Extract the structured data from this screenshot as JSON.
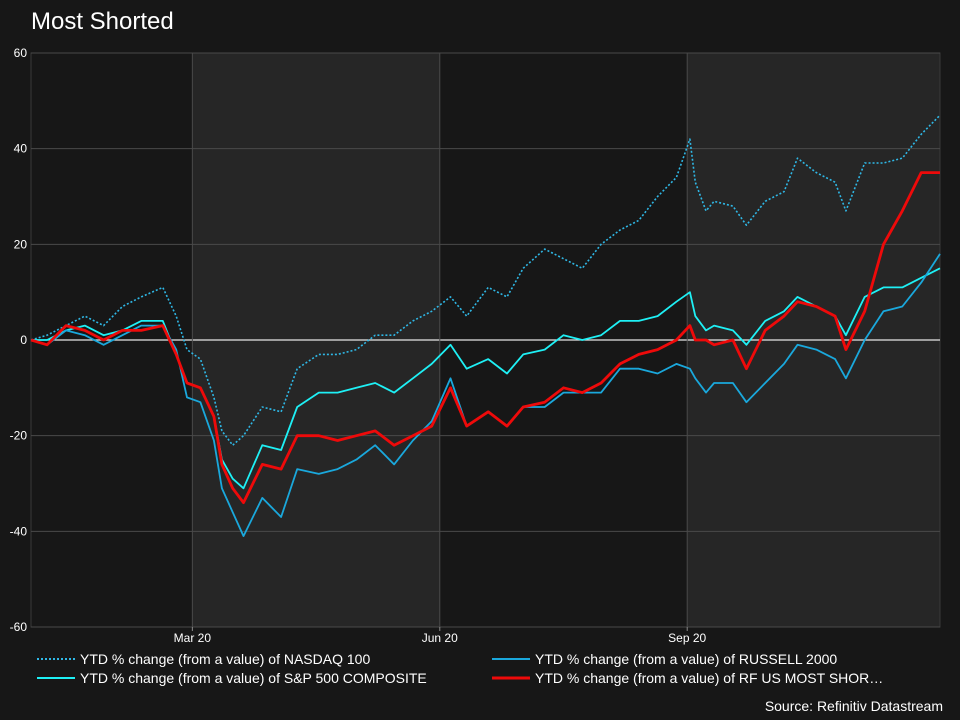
{
  "chart_data": {
    "type": "line",
    "title": "Most Shorted",
    "source": "Source: Refinitiv Datastream",
    "ylim": [
      -60,
      60
    ],
    "yticks": [
      60,
      40,
      20,
      0,
      -20,
      -40,
      -60
    ],
    "ytick_labels": [
      "60",
      "40",
      "20",
      "0",
      "-20",
      "-40",
      "-60"
    ],
    "x_range": [
      "2020-01-01",
      "2020-12-04"
    ],
    "xticks": [
      {
        "date": "2020-03-01",
        "label": "Mar 20"
      },
      {
        "date": "2020-06-01",
        "label": "Jun 20"
      },
      {
        "date": "2020-09-01",
        "label": "Sep 20"
      }
    ],
    "shaded_periods": [
      [
        "2020-03-01",
        "2020-06-01"
      ],
      [
        "2020-09-01",
        "2020-12-04"
      ]
    ],
    "legend_placement": "bottom",
    "series": [
      {
        "name": "YTD % change (from a value) of NASDAQ 100",
        "color": "#2fb8e6",
        "style": "dotted",
        "points": [
          [
            "2020-01-01",
            0
          ],
          [
            "2020-01-07",
            1
          ],
          [
            "2020-01-14",
            3
          ],
          [
            "2020-01-21",
            5
          ],
          [
            "2020-01-28",
            3
          ],
          [
            "2020-02-04",
            7
          ],
          [
            "2020-02-11",
            9
          ],
          [
            "2020-02-19",
            11
          ],
          [
            "2020-02-24",
            5
          ],
          [
            "2020-02-28",
            -2
          ],
          [
            "2020-03-04",
            -4
          ],
          [
            "2020-03-09",
            -12
          ],
          [
            "2020-03-12",
            -19
          ],
          [
            "2020-03-16",
            -22
          ],
          [
            "2020-03-20",
            -20
          ],
          [
            "2020-03-27",
            -14
          ],
          [
            "2020-04-03",
            -15
          ],
          [
            "2020-04-09",
            -6
          ],
          [
            "2020-04-17",
            -3
          ],
          [
            "2020-04-24",
            -3
          ],
          [
            "2020-05-01",
            -2
          ],
          [
            "2020-05-08",
            1
          ],
          [
            "2020-05-15",
            1
          ],
          [
            "2020-05-22",
            4
          ],
          [
            "2020-05-29",
            6
          ],
          [
            "2020-06-05",
            9
          ],
          [
            "2020-06-11",
            5
          ],
          [
            "2020-06-19",
            11
          ],
          [
            "2020-06-26",
            9
          ],
          [
            "2020-07-02",
            15
          ],
          [
            "2020-07-10",
            19
          ],
          [
            "2020-07-17",
            17
          ],
          [
            "2020-07-24",
            15
          ],
          [
            "2020-07-31",
            20
          ],
          [
            "2020-08-07",
            23
          ],
          [
            "2020-08-14",
            25
          ],
          [
            "2020-08-21",
            30
          ],
          [
            "2020-08-28",
            34
          ],
          [
            "2020-09-02",
            42
          ],
          [
            "2020-09-04",
            33
          ],
          [
            "2020-09-08",
            27
          ],
          [
            "2020-09-11",
            29
          ],
          [
            "2020-09-18",
            28
          ],
          [
            "2020-09-23",
            24
          ],
          [
            "2020-09-30",
            29
          ],
          [
            "2020-10-07",
            31
          ],
          [
            "2020-10-12",
            38
          ],
          [
            "2020-10-19",
            35
          ],
          [
            "2020-10-26",
            33
          ],
          [
            "2020-10-30",
            27
          ],
          [
            "2020-11-06",
            37
          ],
          [
            "2020-11-13",
            37
          ],
          [
            "2020-11-20",
            38
          ],
          [
            "2020-11-27",
            43
          ],
          [
            "2020-12-04",
            47
          ]
        ]
      },
      {
        "name": "YTD % change (from a value) of S&P 500 COMPOSITE",
        "color": "#1ef0f5",
        "style": "solid",
        "points": [
          [
            "2020-01-01",
            0
          ],
          [
            "2020-01-07",
            0
          ],
          [
            "2020-01-14",
            2
          ],
          [
            "2020-01-21",
            3
          ],
          [
            "2020-01-28",
            1
          ],
          [
            "2020-02-04",
            2
          ],
          [
            "2020-02-11",
            4
          ],
          [
            "2020-02-19",
            4
          ],
          [
            "2020-02-24",
            -3
          ],
          [
            "2020-02-28",
            -9
          ],
          [
            "2020-03-04",
            -10
          ],
          [
            "2020-03-09",
            -16
          ],
          [
            "2020-03-12",
            -25
          ],
          [
            "2020-03-16",
            -29
          ],
          [
            "2020-03-20",
            -31
          ],
          [
            "2020-03-27",
            -22
          ],
          [
            "2020-04-03",
            -23
          ],
          [
            "2020-04-09",
            -14
          ],
          [
            "2020-04-17",
            -11
          ],
          [
            "2020-04-24",
            -11
          ],
          [
            "2020-05-01",
            -10
          ],
          [
            "2020-05-08",
            -9
          ],
          [
            "2020-05-15",
            -11
          ],
          [
            "2020-05-22",
            -8
          ],
          [
            "2020-05-29",
            -5
          ],
          [
            "2020-06-05",
            -1
          ],
          [
            "2020-06-11",
            -6
          ],
          [
            "2020-06-19",
            -4
          ],
          [
            "2020-06-26",
            -7
          ],
          [
            "2020-07-02",
            -3
          ],
          [
            "2020-07-10",
            -2
          ],
          [
            "2020-07-17",
            1
          ],
          [
            "2020-07-24",
            0
          ],
          [
            "2020-07-31",
            1
          ],
          [
            "2020-08-07",
            4
          ],
          [
            "2020-08-14",
            4
          ],
          [
            "2020-08-21",
            5
          ],
          [
            "2020-08-28",
            8
          ],
          [
            "2020-09-02",
            10
          ],
          [
            "2020-09-04",
            5
          ],
          [
            "2020-09-08",
            2
          ],
          [
            "2020-09-11",
            3
          ],
          [
            "2020-09-18",
            2
          ],
          [
            "2020-09-23",
            -1
          ],
          [
            "2020-09-30",
            4
          ],
          [
            "2020-10-07",
            6
          ],
          [
            "2020-10-12",
            9
          ],
          [
            "2020-10-19",
            7
          ],
          [
            "2020-10-26",
            5
          ],
          [
            "2020-10-30",
            1
          ],
          [
            "2020-11-06",
            9
          ],
          [
            "2020-11-13",
            11
          ],
          [
            "2020-11-20",
            11
          ],
          [
            "2020-11-27",
            13
          ],
          [
            "2020-12-04",
            15
          ]
        ]
      },
      {
        "name": "YTD % change (from a value) of RUSSELL 2000",
        "color": "#1aa8dc",
        "style": "solid",
        "points": [
          [
            "2020-01-01",
            0
          ],
          [
            "2020-01-07",
            -1
          ],
          [
            "2020-01-14",
            2
          ],
          [
            "2020-01-21",
            1
          ],
          [
            "2020-01-28",
            -1
          ],
          [
            "2020-02-04",
            1
          ],
          [
            "2020-02-11",
            3
          ],
          [
            "2020-02-19",
            3
          ],
          [
            "2020-02-24",
            -2
          ],
          [
            "2020-02-28",
            -12
          ],
          [
            "2020-03-04",
            -13
          ],
          [
            "2020-03-09",
            -21
          ],
          [
            "2020-03-12",
            -31
          ],
          [
            "2020-03-16",
            -36
          ],
          [
            "2020-03-20",
            -41
          ],
          [
            "2020-03-27",
            -33
          ],
          [
            "2020-04-03",
            -37
          ],
          [
            "2020-04-09",
            -27
          ],
          [
            "2020-04-17",
            -28
          ],
          [
            "2020-04-24",
            -27
          ],
          [
            "2020-05-01",
            -25
          ],
          [
            "2020-05-08",
            -22
          ],
          [
            "2020-05-15",
            -26
          ],
          [
            "2020-05-22",
            -21
          ],
          [
            "2020-05-29",
            -17
          ],
          [
            "2020-06-05",
            -8
          ],
          [
            "2020-06-11",
            -18
          ],
          [
            "2020-06-19",
            -15
          ],
          [
            "2020-06-26",
            -18
          ],
          [
            "2020-07-02",
            -14
          ],
          [
            "2020-07-10",
            -14
          ],
          [
            "2020-07-17",
            -11
          ],
          [
            "2020-07-24",
            -11
          ],
          [
            "2020-07-31",
            -11
          ],
          [
            "2020-08-07",
            -6
          ],
          [
            "2020-08-14",
            -6
          ],
          [
            "2020-08-21",
            -7
          ],
          [
            "2020-08-28",
            -5
          ],
          [
            "2020-09-02",
            -6
          ],
          [
            "2020-09-04",
            -8
          ],
          [
            "2020-09-08",
            -11
          ],
          [
            "2020-09-11",
            -9
          ],
          [
            "2020-09-18",
            -9
          ],
          [
            "2020-09-23",
            -13
          ],
          [
            "2020-09-30",
            -9
          ],
          [
            "2020-10-07",
            -5
          ],
          [
            "2020-10-12",
            -1
          ],
          [
            "2020-10-19",
            -2
          ],
          [
            "2020-10-26",
            -4
          ],
          [
            "2020-10-30",
            -8
          ],
          [
            "2020-11-06",
            0
          ],
          [
            "2020-11-13",
            6
          ],
          [
            "2020-11-20",
            7
          ],
          [
            "2020-11-27",
            12
          ],
          [
            "2020-12-04",
            18
          ]
        ]
      },
      {
        "name": "YTD % change (from a value) of RF US MOST SHOR…",
        "color": "#ee0a0a",
        "style": "solid",
        "points": [
          [
            "2020-01-01",
            0
          ],
          [
            "2020-01-07",
            -1
          ],
          [
            "2020-01-14",
            3
          ],
          [
            "2020-01-21",
            2
          ],
          [
            "2020-01-28",
            0
          ],
          [
            "2020-02-04",
            2
          ],
          [
            "2020-02-11",
            2
          ],
          [
            "2020-02-19",
            3
          ],
          [
            "2020-02-24",
            -3
          ],
          [
            "2020-02-28",
            -9
          ],
          [
            "2020-03-04",
            -10
          ],
          [
            "2020-03-09",
            -16
          ],
          [
            "2020-03-12",
            -26
          ],
          [
            "2020-03-16",
            -31
          ],
          [
            "2020-03-20",
            -34
          ],
          [
            "2020-03-27",
            -26
          ],
          [
            "2020-04-03",
            -27
          ],
          [
            "2020-04-09",
            -20
          ],
          [
            "2020-04-17",
            -20
          ],
          [
            "2020-04-24",
            -21
          ],
          [
            "2020-05-01",
            -20
          ],
          [
            "2020-05-08",
            -19
          ],
          [
            "2020-05-15",
            -22
          ],
          [
            "2020-05-22",
            -20
          ],
          [
            "2020-05-29",
            -18
          ],
          [
            "2020-06-05",
            -10
          ],
          [
            "2020-06-11",
            -18
          ],
          [
            "2020-06-19",
            -15
          ],
          [
            "2020-06-26",
            -18
          ],
          [
            "2020-07-02",
            -14
          ],
          [
            "2020-07-10",
            -13
          ],
          [
            "2020-07-17",
            -10
          ],
          [
            "2020-07-24",
            -11
          ],
          [
            "2020-07-31",
            -9
          ],
          [
            "2020-08-07",
            -5
          ],
          [
            "2020-08-14",
            -3
          ],
          [
            "2020-08-21",
            -2
          ],
          [
            "2020-08-28",
            0
          ],
          [
            "2020-09-02",
            3
          ],
          [
            "2020-09-04",
            0
          ],
          [
            "2020-09-08",
            0
          ],
          [
            "2020-09-11",
            -1
          ],
          [
            "2020-09-18",
            0
          ],
          [
            "2020-09-23",
            -6
          ],
          [
            "2020-09-30",
            2
          ],
          [
            "2020-10-07",
            5
          ],
          [
            "2020-10-12",
            8
          ],
          [
            "2020-10-19",
            7
          ],
          [
            "2020-10-26",
            5
          ],
          [
            "2020-10-30",
            -2
          ],
          [
            "2020-11-06",
            6
          ],
          [
            "2020-11-13",
            20
          ],
          [
            "2020-11-20",
            27
          ],
          [
            "2020-11-27",
            35
          ],
          [
            "2020-12-04",
            35
          ]
        ]
      }
    ]
  }
}
